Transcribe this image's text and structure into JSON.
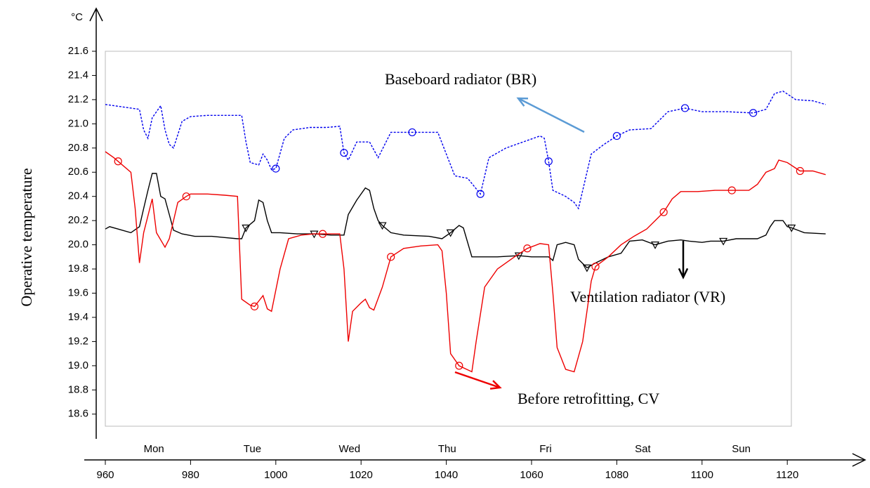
{
  "chart_data": {
    "type": "line",
    "y_label": "Operative temperature",
    "y_unit": "°C",
    "xlim": [
      960,
      1129
    ],
    "ylim": [
      18.5,
      21.6
    ],
    "xticks": [
      960,
      980,
      1000,
      1020,
      1040,
      1060,
      1080,
      1100,
      1120
    ],
    "yticks": [
      18.6,
      18.8,
      {
        "value": 19,
        "label": "19.0"
      },
      19.2,
      19.4,
      19.6,
      19.8,
      {
        "value": 20,
        "label": "20.0"
      },
      20.2,
      20.4,
      20.6,
      20.8,
      {
        "value": 21,
        "label": "21.0"
      },
      21.2,
      21.4,
      21.6
    ],
    "day_ticks": [
      {
        "value": 971.4,
        "label": "Mon"
      },
      {
        "value": 994.5,
        "label": "Tue"
      },
      {
        "value": 1017.3,
        "label": "Wed"
      },
      {
        "value": 1040.2,
        "label": "Thu"
      },
      {
        "value": 1063.3,
        "label": "Fri"
      },
      {
        "value": 1086.1,
        "label": "Sat"
      },
      {
        "value": 1109.2,
        "label": "Sun"
      }
    ],
    "series": [
      {
        "name": "Baseboard radiator (BR)",
        "color": "#0000ee",
        "dash": true,
        "marker": "circle",
        "marker_start": 1000,
        "marker_step": 16,
        "x": [
          960,
          964,
          968,
          969,
          970,
          971,
          973,
          974,
          975,
          976,
          978,
          980,
          984,
          988,
          992,
          993,
          994,
          996,
          997,
          998,
          999,
          1000,
          1002,
          1004,
          1008,
          1012,
          1015,
          1016,
          1017,
          1019,
          1022,
          1024,
          1027,
          1032,
          1038,
          1040,
          1042,
          1045,
          1048,
          1050,
          1054,
          1058,
          1062,
          1063,
          1064,
          1065,
          1068,
          1070,
          1071,
          1074,
          1077,
          1080,
          1083,
          1088,
          1092,
          1096,
          1100,
          1106,
          1112,
          1115,
          1117,
          1119,
          1122,
          1126,
          1129
        ],
        "values": [
          21.16,
          21.14,
          21.12,
          20.95,
          20.88,
          21.05,
          21.15,
          20.95,
          20.83,
          20.8,
          21.02,
          21.06,
          21.07,
          21.07,
          21.07,
          20.85,
          20.68,
          20.66,
          20.75,
          20.7,
          20.62,
          20.63,
          20.88,
          20.95,
          20.97,
          20.97,
          20.98,
          20.76,
          20.7,
          20.85,
          20.85,
          20.72,
          20.93,
          20.93,
          20.93,
          20.75,
          20.57,
          20.55,
          20.42,
          20.72,
          20.8,
          20.85,
          20.9,
          20.88,
          20.69,
          20.45,
          20.4,
          20.35,
          20.3,
          20.75,
          20.83,
          20.9,
          20.95,
          20.96,
          21.1,
          21.13,
          21.1,
          21.1,
          21.09,
          21.12,
          21.25,
          21.27,
          21.2,
          21.19,
          21.16
        ]
      },
      {
        "name": "Ventilation radiator (VR)",
        "color": "#000000",
        "dash": false,
        "marker": "triangle",
        "marker_start": 993,
        "marker_step": 16,
        "x": [
          960,
          961,
          963,
          966,
          968,
          969,
          970,
          971,
          972,
          973,
          974,
          975,
          976,
          978,
          981,
          985,
          988,
          991,
          992,
          993,
          995,
          996,
          997,
          998,
          999,
          1001,
          1005,
          1009,
          1013,
          1016,
          1017,
          1019,
          1021,
          1022,
          1023,
          1024,
          1025,
          1027,
          1030,
          1036,
          1039,
          1041,
          1043,
          1044,
          1046,
          1048,
          1052,
          1057,
          1060,
          1064,
          1065,
          1066,
          1068,
          1070,
          1071,
          1073,
          1075,
          1078,
          1081,
          1083,
          1086,
          1089,
          1092,
          1095,
          1097,
          1100,
          1102,
          1105,
          1108,
          1113,
          1115,
          1116,
          1117,
          1119,
          1120,
          1121,
          1124,
          1129
        ],
        "values": [
          20.13,
          20.15,
          20.13,
          20.1,
          20.15,
          20.3,
          20.45,
          20.59,
          20.59,
          20.4,
          20.38,
          20.25,
          20.12,
          20.09,
          20.07,
          20.07,
          20.06,
          20.05,
          20.05,
          20.14,
          20.2,
          20.37,
          20.35,
          20.2,
          20.1,
          20.1,
          20.09,
          20.09,
          20.08,
          20.08,
          20.25,
          20.37,
          20.47,
          20.45,
          20.3,
          20.2,
          20.16,
          20.1,
          20.08,
          20.07,
          20.05,
          20.1,
          20.16,
          20.14,
          19.9,
          19.9,
          19.9,
          19.91,
          19.9,
          19.9,
          19.87,
          20.0,
          20.02,
          20.0,
          19.88,
          19.81,
          19.85,
          19.9,
          19.93,
          20.03,
          20.04,
          20.0,
          20.03,
          20.04,
          20.03,
          20.02,
          20.03,
          20.03,
          20.05,
          20.05,
          20.08,
          20.15,
          20.2,
          20.2,
          20.15,
          20.14,
          20.1,
          20.09
        ]
      },
      {
        "name": "Before retrofitting, CV",
        "color": "#ee0000",
        "dash": false,
        "marker": "circle",
        "marker_start": 963,
        "marker_step": 16,
        "x": [
          960,
          962,
          963,
          966,
          967,
          968,
          969,
          971,
          972,
          974,
          975,
          977,
          979,
          980,
          984,
          988,
          991,
          992,
          994,
          995,
          997,
          998,
          999,
          1001,
          1003,
          1006,
          1009,
          1011,
          1015,
          1016,
          1017,
          1018,
          1020,
          1021,
          1022,
          1023,
          1025,
          1027,
          1030,
          1034,
          1038,
          1039,
          1040,
          1041,
          1043,
          1046,
          1047,
          1049,
          1052,
          1056,
          1059,
          1062,
          1064,
          1065,
          1066,
          1068,
          1070,
          1072,
          1074,
          1075,
          1078,
          1081,
          1084,
          1087,
          1089,
          1091,
          1093,
          1095,
          1099,
          1103,
          1107,
          1111,
          1113,
          1115,
          1117,
          1118,
          1120,
          1123,
          1126,
          1129
        ],
        "values": [
          20.77,
          20.72,
          20.69,
          20.6,
          20.3,
          19.85,
          20.1,
          20.38,
          20.1,
          19.98,
          20.05,
          20.35,
          20.4,
          20.42,
          20.42,
          20.41,
          20.4,
          19.55,
          19.5,
          19.49,
          19.58,
          19.47,
          19.45,
          19.8,
          20.05,
          20.08,
          20.09,
          20.09,
          20.09,
          19.8,
          19.2,
          19.45,
          19.52,
          19.55,
          19.48,
          19.46,
          19.65,
          19.9,
          19.97,
          19.99,
          20.0,
          19.95,
          19.6,
          19.1,
          19.0,
          18.95,
          19.2,
          19.65,
          19.8,
          19.9,
          19.97,
          20.01,
          20.0,
          19.6,
          19.15,
          18.97,
          18.95,
          19.2,
          19.7,
          19.82,
          19.9,
          20.0,
          20.07,
          20.13,
          20.2,
          20.27,
          20.38,
          20.44,
          20.44,
          20.45,
          20.45,
          20.45,
          20.5,
          20.6,
          20.63,
          20.7,
          20.68,
          20.61,
          20.61,
          20.58
        ]
      }
    ]
  }
}
